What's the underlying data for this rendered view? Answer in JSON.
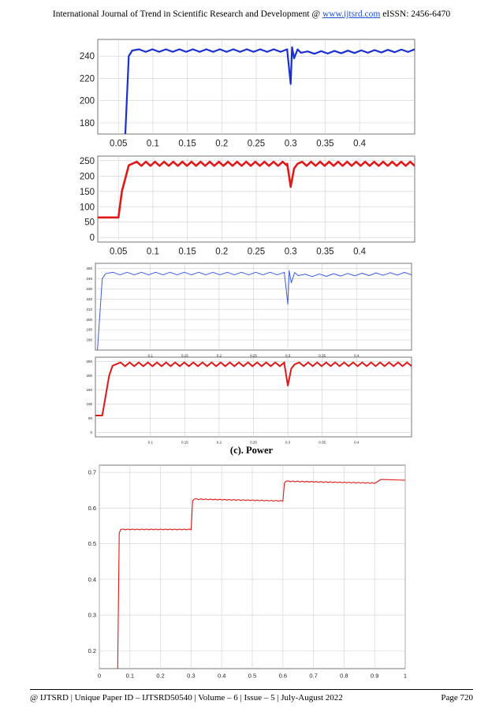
{
  "header": {
    "text_before": "International Journal of Trend in Scientific Research and Development @ ",
    "link": "www.ijtsrd.com",
    "text_after": " eISSN: 2456-6470"
  },
  "caption": "(c). Power",
  "footer": {
    "left": "@ IJTSRD  |  Unique Paper ID – IJTSRD50540  |  Volume – 6  |  Issue – 5  |  July-August 2022",
    "right": "Page 720"
  },
  "chart_data": [
    {
      "type": "line",
      "xlim": [
        0.02,
        0.48
      ],
      "ylim": [
        170,
        255
      ],
      "xticks": [
        0.05,
        0.1,
        0.15,
        0.2,
        0.25,
        0.3,
        0.35,
        0.4
      ],
      "yticks": [
        180,
        200,
        220,
        240
      ],
      "color": "#1a2fd0",
      "grid": true,
      "series": [
        {
          "x": [
            0.06,
            0.065,
            0.07,
            0.295,
            0.3,
            0.302,
            0.305,
            0.31,
            0.315,
            0.48
          ],
          "y": [
            170,
            240,
            245,
            245,
            215,
            248,
            238,
            246,
            243,
            245
          ]
        }
      ]
    },
    {
      "type": "line",
      "xlim": [
        0.02,
        0.48
      ],
      "ylim": [
        -15,
        265
      ],
      "xticks": [
        0.05,
        0.1,
        0.15,
        0.2,
        0.25,
        0.3,
        0.35,
        0.4
      ],
      "yticks": [
        0,
        50,
        100,
        150,
        200,
        250
      ],
      "color": "#e01818",
      "grid": true,
      "series": [
        {
          "x": [
            0.02,
            0.05,
            0.055,
            0.065,
            0.07,
            0.295,
            0.3,
            0.305,
            0.31,
            0.48
          ],
          "y": [
            65,
            65,
            150,
            235,
            240,
            240,
            165,
            225,
            240,
            240
          ]
        }
      ]
    },
    {
      "type": "line",
      "xlim": [
        0.02,
        0.48
      ],
      "ylim": [
        170,
        255
      ],
      "xticks": [
        0.1,
        0.15,
        0.2,
        0.25,
        0.3,
        0.35,
        0.4
      ],
      "yticks": [
        180,
        190,
        200,
        210,
        220,
        230,
        240,
        250
      ],
      "color": "#3a5ae0",
      "grid": true,
      "series": [
        {
          "x": [
            0.023,
            0.03,
            0.035,
            0.295,
            0.3,
            0.302,
            0.305,
            0.31,
            0.315,
            0.48
          ],
          "y": [
            170,
            240,
            245,
            245,
            215,
            248,
            236,
            246,
            243,
            245
          ]
        }
      ]
    },
    {
      "type": "line",
      "xlim": [
        0.02,
        0.48
      ],
      "ylim": [
        -15,
        265
      ],
      "xticks": [
        0.1,
        0.15,
        0.2,
        0.25,
        0.3,
        0.35,
        0.4
      ],
      "yticks": [
        0,
        50,
        100,
        150,
        200,
        250
      ],
      "color": "#e01818",
      "grid": true,
      "series": [
        {
          "x": [
            0.02,
            0.03,
            0.04,
            0.045,
            0.05,
            0.295,
            0.3,
            0.305,
            0.31,
            0.48
          ],
          "y": [
            60,
            60,
            200,
            235,
            240,
            240,
            165,
            225,
            240,
            240
          ]
        }
      ]
    },
    {
      "type": "line",
      "xlim": [
        0,
        1
      ],
      "ylim": [
        0.15,
        0.72
      ],
      "xticks": [
        0,
        0.1,
        0.2,
        0.3,
        0.4,
        0.5,
        0.6,
        0.7,
        0.8,
        0.9,
        1
      ],
      "yticks": [
        0.2,
        0.3,
        0.4,
        0.5,
        0.6,
        0.7
      ],
      "color": "#e01818",
      "grid": true,
      "series": [
        {
          "x": [
            0.06,
            0.065,
            0.07,
            0.3,
            0.305,
            0.31,
            0.6,
            0.605,
            0.61,
            0.9,
            0.92,
            1.0
          ],
          "y": [
            0.15,
            0.53,
            0.54,
            0.54,
            0.62,
            0.625,
            0.62,
            0.67,
            0.675,
            0.67,
            0.68,
            0.678
          ]
        }
      ]
    }
  ]
}
